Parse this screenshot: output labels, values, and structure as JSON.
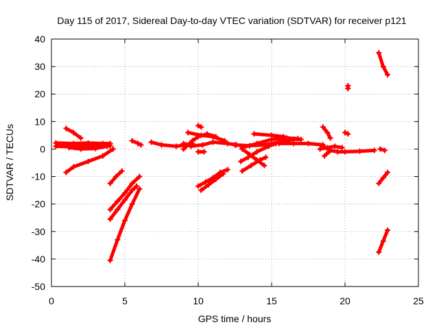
{
  "chart_data": {
    "type": "scatter",
    "title": "Day 115 of 2017, Sidereal Day-to-day VTEC variation (SDTVAR) for receiver p121",
    "xlabel": "GPS time / hours",
    "ylabel": "SDTVAR / TECUs",
    "xlim": [
      0,
      25
    ],
    "ylim": [
      -50,
      40
    ],
    "xticks": [
      "0",
      "5",
      "10",
      "15",
      "20",
      "25"
    ],
    "yticks": [
      "-50",
      "-40",
      "-30",
      "-20",
      "-10",
      "0",
      "10",
      "20",
      "30",
      "40"
    ],
    "grid": true,
    "legend": "none",
    "marker": "plus",
    "color": "#ff0000",
    "segments": [
      [
        [
          0.3,
          2.2
        ],
        [
          1.5,
          2.0
        ],
        [
          2.5,
          2.2
        ],
        [
          3.5,
          2.0
        ],
        [
          4.0,
          2.0
        ]
      ],
      [
        [
          0.3,
          1.0
        ],
        [
          1.5,
          0.8
        ],
        [
          2.5,
          1.0
        ],
        [
          3.5,
          1.0
        ],
        [
          4.0,
          1.2
        ]
      ],
      [
        [
          1.2,
          0.5
        ],
        [
          2.0,
          0.0
        ],
        [
          3.0,
          0.2
        ],
        [
          3.8,
          1.0
        ]
      ],
      [
        [
          1.0,
          7.5
        ],
        [
          1.5,
          6.0
        ],
        [
          2.0,
          4.0
        ]
      ],
      [
        [
          1.0,
          -8.5
        ],
        [
          1.5,
          -6.5
        ],
        [
          2.5,
          -4.5
        ],
        [
          3.5,
          -2.5
        ],
        [
          4.2,
          0.0
        ]
      ],
      [
        [
          4.0,
          -12.5
        ],
        [
          4.4,
          -10.0
        ],
        [
          4.8,
          -8.0
        ]
      ],
      [
        [
          4.0,
          -22.0
        ],
        [
          4.5,
          -19.0
        ],
        [
          5.0,
          -16.0
        ],
        [
          5.5,
          -12.5
        ],
        [
          6.0,
          -10.0
        ]
      ],
      [
        [
          4.0,
          -25.5
        ],
        [
          4.5,
          -22.0
        ],
        [
          5.0,
          -18.5
        ],
        [
          5.5,
          -15.0
        ],
        [
          5.8,
          -13.5
        ]
      ],
      [
        [
          4.0,
          -40.5
        ],
        [
          4.5,
          -33.0
        ],
        [
          5.0,
          -26.0
        ],
        [
          5.5,
          -20.0
        ],
        [
          6.0,
          -14.5
        ]
      ],
      [
        [
          5.5,
          3.0
        ],
        [
          5.9,
          2.0
        ],
        [
          6.1,
          1.5
        ]
      ],
      [
        [
          6.8,
          2.5
        ],
        [
          7.5,
          1.5
        ],
        [
          8.5,
          1.0
        ],
        [
          9.2,
          1.5
        ],
        [
          9.6,
          2.0
        ]
      ],
      [
        [
          9.0,
          0.0
        ],
        [
          9.6,
          3.0
        ],
        [
          10.0,
          4.5
        ],
        [
          10.6,
          5.5
        ],
        [
          11.2,
          4.5
        ]
      ],
      [
        [
          9.0,
          2.0
        ],
        [
          9.5,
          1.0
        ],
        [
          10.3,
          1.5
        ],
        [
          11.0,
          2.5
        ],
        [
          12.0,
          2.0
        ],
        [
          12.6,
          1.5
        ]
      ],
      [
        [
          9.3,
          6.0
        ],
        [
          10.2,
          5.0
        ],
        [
          11.0,
          4.5
        ],
        [
          11.8,
          3.0
        ]
      ],
      [
        [
          10.0,
          8.5
        ],
        [
          10.2,
          8.0
        ]
      ],
      [
        [
          10.0,
          -1.0
        ],
        [
          10.4,
          -1.0
        ]
      ],
      [
        [
          10.0,
          -13.5
        ],
        [
          10.5,
          -12.0
        ],
        [
          11.0,
          -10.5
        ],
        [
          11.5,
          -8.5
        ],
        [
          12.0,
          -7.5
        ]
      ],
      [
        [
          10.2,
          -15.0
        ],
        [
          10.7,
          -13.0
        ],
        [
          11.2,
          -11.0
        ],
        [
          11.7,
          -9.0
        ]
      ],
      [
        [
          12.5,
          1.5
        ],
        [
          13.5,
          1.2
        ],
        [
          14.5,
          1.5
        ],
        [
          15.5,
          2.5
        ],
        [
          16.5,
          3.5
        ],
        [
          17.0,
          3.5
        ]
      ],
      [
        [
          13.0,
          0.5
        ],
        [
          14.0,
          2.0
        ],
        [
          15.0,
          3.5
        ],
        [
          16.0,
          4.0
        ],
        [
          16.8,
          3.8
        ]
      ],
      [
        [
          13.8,
          5.5
        ],
        [
          15.0,
          5.0
        ],
        [
          15.8,
          4.5
        ],
        [
          16.5,
          3.5
        ]
      ],
      [
        [
          13.0,
          0.0
        ],
        [
          13.5,
          -2.0
        ],
        [
          14.0,
          -4.0
        ],
        [
          14.5,
          -6.0
        ]
      ],
      [
        [
          12.9,
          -4.5
        ],
        [
          13.4,
          -3.0
        ],
        [
          14.0,
          -1.0
        ],
        [
          14.8,
          1.0
        ],
        [
          15.3,
          2.0
        ]
      ],
      [
        [
          13.0,
          -8.0
        ],
        [
          13.6,
          -6.0
        ],
        [
          14.2,
          -4.0
        ],
        [
          14.6,
          -3.0
        ]
      ],
      [
        [
          15.5,
          2.0
        ],
        [
          16.5,
          2.0
        ],
        [
          17.5,
          2.0
        ],
        [
          18.5,
          1.5
        ]
      ],
      [
        [
          18.5,
          1.0
        ],
        [
          19.0,
          -0.5
        ],
        [
          19.5,
          -1.0
        ],
        [
          20.0,
          -1.0
        ],
        [
          21.0,
          -0.8
        ],
        [
          22.0,
          -0.5
        ]
      ],
      [
        [
          18.3,
          0.0
        ],
        [
          18.8,
          0.5
        ],
        [
          19.3,
          1.0
        ],
        [
          19.8,
          0.5
        ]
      ],
      [
        [
          18.6,
          -2.5
        ],
        [
          18.9,
          -1.0
        ]
      ],
      [
        [
          18.5,
          8.0
        ],
        [
          18.8,
          6.0
        ],
        [
          19.0,
          4.0
        ]
      ],
      [
        [
          20.2,
          23.0
        ],
        [
          20.2,
          22.0
        ]
      ],
      [
        [
          20.0,
          6.0
        ],
        [
          20.2,
          5.5
        ]
      ],
      [
        [
          22.3,
          35.0
        ],
        [
          22.6,
          30.0
        ],
        [
          22.9,
          27.0
        ]
      ],
      [
        [
          22.4,
          0.0
        ],
        [
          22.7,
          -0.5
        ]
      ],
      [
        [
          22.3,
          -12.5
        ],
        [
          22.6,
          -10.5
        ],
        [
          22.9,
          -8.5
        ]
      ],
      [
        [
          22.3,
          -37.5
        ],
        [
          22.6,
          -33.5
        ],
        [
          22.9,
          -29.5
        ]
      ]
    ]
  }
}
